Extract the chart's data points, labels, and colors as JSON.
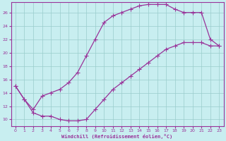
{
  "xlabel": "Windchill (Refroidissement éolien,°C)",
  "bg_color": "#c8eef0",
  "line_color": "#993399",
  "marker": "+",
  "markersize": 4,
  "linewidth": 0.9,
  "xlim": [
    -0.5,
    23.5
  ],
  "ylim": [
    9,
    27.5
  ],
  "xticks": [
    0,
    1,
    2,
    3,
    4,
    5,
    6,
    7,
    8,
    9,
    10,
    11,
    12,
    13,
    14,
    15,
    16,
    17,
    18,
    19,
    20,
    21,
    22,
    23
  ],
  "yticks": [
    10,
    12,
    14,
    16,
    18,
    20,
    22,
    24,
    26
  ],
  "grid_color": "#99cccc",
  "line1_x": [
    0,
    1,
    2,
    3,
    4,
    5,
    6,
    7,
    8,
    9,
    10,
    11,
    12,
    13,
    14,
    15,
    16,
    17,
    18,
    19,
    20,
    21,
    22,
    23
  ],
  "line1_y": [
    15.0,
    13.0,
    11.0,
    10.5,
    10.5,
    10.0,
    9.8,
    9.8,
    10.0,
    11.5,
    13.0,
    14.5,
    15.5,
    16.5,
    17.5,
    18.5,
    19.5,
    20.5,
    21.0,
    21.5,
    21.5,
    21.5,
    21.0,
    21.0
  ],
  "line2_x": [
    0,
    1,
    2,
    3,
    4,
    5,
    6,
    7,
    8,
    9,
    10,
    11,
    12,
    13,
    14,
    15,
    16,
    17,
    18,
    19,
    20,
    21,
    22,
    23
  ],
  "line2_y": [
    15.0,
    13.0,
    11.5,
    13.5,
    14.0,
    14.5,
    15.5,
    17.0,
    19.5,
    22.0,
    24.5,
    25.5,
    26.0,
    26.5,
    27.0,
    27.2,
    27.2,
    27.2,
    26.5,
    26.0,
    26.0,
    26.0,
    22.0,
    21.0
  ]
}
